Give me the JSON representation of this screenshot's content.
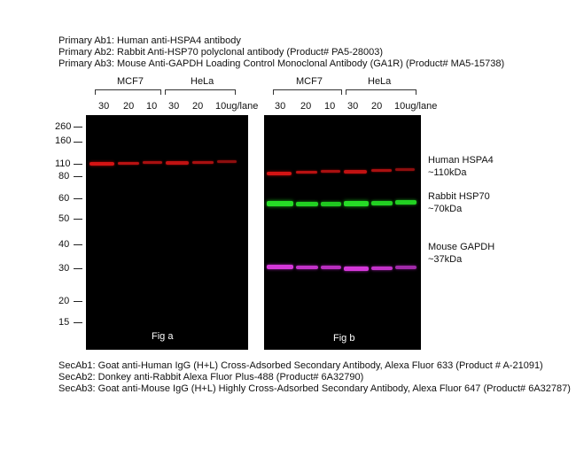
{
  "primary": [
    "Primary Ab1: Human anti-HSPA4 antibody",
    "Primary Ab2: Rabbit Anti-HSP70 polyclonal antibody (Product# PA5-28003)",
    "Primary Ab3: Mouse Anti-GAPDH Loading Control Monoclonal Antibody (GA1R) (Product# MA5-15738)"
  ],
  "secondary": [
    "SecAb1: Goat anti-Human IgG (H+L) Cross-Adsorbed Secondary Antibody, Alexa Fluor 633 (Product # A-21091)",
    "SecAb2: Donkey anti-Rabbit Alexa Fluor Plus-488 (Product# 6A32790)",
    "SecAb3: Goat anti-Mouse IgG (H+L) Highly Cross-Adsorbed Secondary Antibody, Alexa Fluor 647 (Product# 6A32787)"
  ],
  "groups": [
    "MCF7",
    "HeLa"
  ],
  "lanes": [
    "30",
    "20",
    "10",
    "30",
    "20",
    "10ug/lane"
  ],
  "markers": [
    "260",
    "160",
    "110",
    "80",
    "60",
    "50",
    "40",
    "30",
    "20",
    "15"
  ],
  "fig_labels": [
    "Fig a",
    "Fig b"
  ],
  "band_labels": [
    {
      "name": "Human HSPA4",
      "size": "~110kDa"
    },
    {
      "name": "Rabbit HSP70",
      "size": "~70kDa"
    },
    {
      "name": "Mouse GAPDH",
      "size": "~37kDa"
    }
  ],
  "colors": {
    "hspa4": "#e01010",
    "hsp70": "#1fd21f",
    "gapdh": "#d234d8",
    "membrane": "#000000"
  }
}
